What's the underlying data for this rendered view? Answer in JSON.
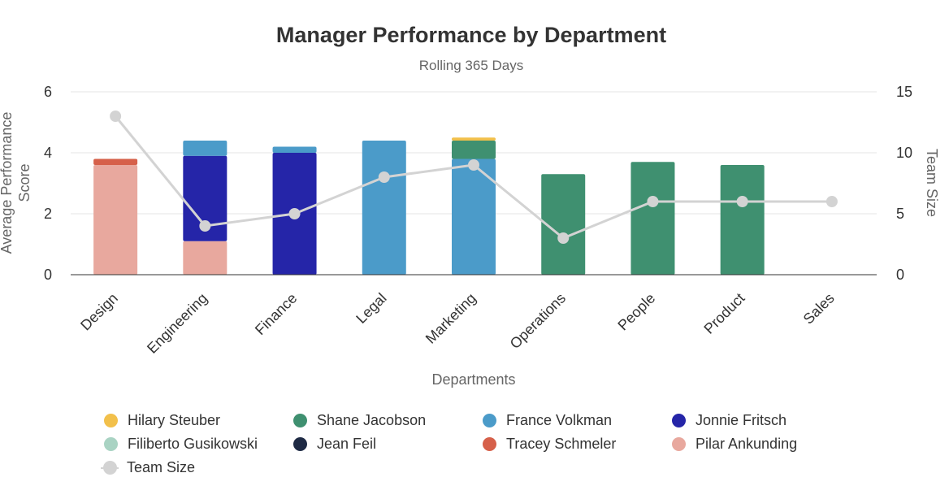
{
  "chart_data": {
    "type": "bar",
    "title": "Manager Performance by Department",
    "subtitle": "Rolling 365 Days",
    "xlabel": "Departments",
    "ylabel": "Average Performance Score",
    "y2label": "Team Size",
    "ylim": [
      0,
      6
    ],
    "y2lim": [
      0,
      15
    ],
    "yticks": [
      "0",
      "2",
      "4",
      "6"
    ],
    "y2ticks": [
      "0",
      "5",
      "10",
      "15"
    ],
    "grid": true,
    "stacked": true,
    "categories": [
      "Design",
      "Engineering",
      "Finance",
      "Legal",
      "Marketing",
      "Operations",
      "People",
      "Product",
      "Sales"
    ],
    "series": [
      {
        "name": "Hilary Steuber",
        "color": "#f2c04b",
        "values": [
          0,
          0,
          0,
          0,
          0.1,
          0,
          0,
          0,
          0
        ]
      },
      {
        "name": "Shane Jacobson",
        "color": "#3f9070",
        "values": [
          0,
          0,
          0,
          0,
          0.6,
          3.3,
          3.7,
          3.6,
          0
        ]
      },
      {
        "name": "France Volkman",
        "color": "#4b9bc9",
        "values": [
          0,
          0.5,
          0.2,
          4.4,
          3.8,
          0,
          0,
          0,
          0
        ]
      },
      {
        "name": "Jonnie Fritsch",
        "color": "#2525a8",
        "values": [
          0,
          2.8,
          4.0,
          0,
          0,
          0,
          0,
          0,
          0
        ]
      },
      {
        "name": "Filiberto Gusikowski",
        "color": "#a9d3c3",
        "values": [
          0,
          0,
          0,
          0,
          0,
          0,
          0,
          0,
          0
        ]
      },
      {
        "name": "Jean Feil",
        "color": "#1e2a44",
        "values": [
          0,
          0,
          0,
          0,
          0,
          0,
          0,
          0,
          0
        ]
      },
      {
        "name": "Tracey Schmeler",
        "color": "#d6604a",
        "values": [
          0.2,
          0,
          0,
          0,
          0,
          0,
          0,
          0,
          0
        ]
      },
      {
        "name": "Pilar Ankunding",
        "color": "#e8a89e",
        "values": [
          3.6,
          1.1,
          0,
          0,
          0,
          0,
          0,
          0,
          0
        ]
      }
    ],
    "line_series": {
      "name": "Team Size",
      "color": "#d3d3d3",
      "axis": "right",
      "values": [
        13,
        4,
        5,
        8,
        9,
        3,
        6,
        6,
        6
      ]
    },
    "legend_position": "bottom"
  }
}
